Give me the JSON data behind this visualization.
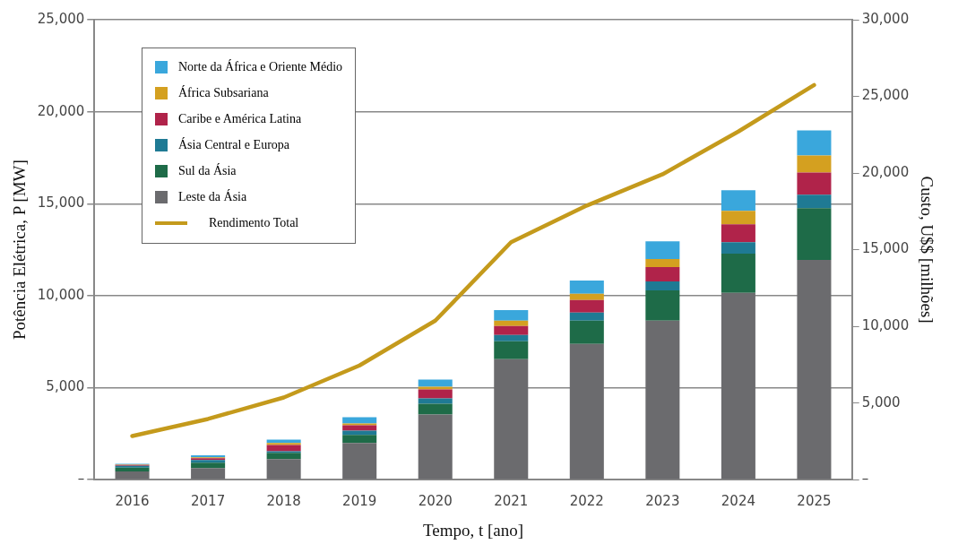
{
  "chart_data": {
    "type": "bar",
    "stacked": true,
    "xlabel": "Tempo, t [ano]",
    "ylabel": "Potência Elétrica, P [MW]",
    "y2label": "Custo, U$$ [milhões]",
    "categories": [
      "2016",
      "2017",
      "2018",
      "2019",
      "2020",
      "2021",
      "2022",
      "2023",
      "2024",
      "2025"
    ],
    "series": [
      {
        "name": "Leste da Ásia",
        "color": "#6b6b6e",
        "values": [
          450,
          630,
          1120,
          1990,
          3540,
          6550,
          7380,
          8640,
          10150,
          11940
        ]
      },
      {
        "name": "Sul da Ásia",
        "color": "#1e6b48",
        "values": [
          200,
          290,
          340,
          440,
          590,
          970,
          1260,
          1650,
          2130,
          2820
        ]
      },
      {
        "name": "Ásia Central e Europa",
        "color": "#1f7a94",
        "values": [
          100,
          150,
          90,
          240,
          290,
          340,
          440,
          490,
          630,
          730
        ]
      },
      {
        "name": "Caribe e América Latina",
        "color": "#b0234a",
        "values": [
          50,
          100,
          340,
          290,
          480,
          490,
          680,
          770,
          970,
          1210
        ]
      },
      {
        "name": "África Subsariana",
        "color": "#d4a020",
        "values": [
          20,
          40,
          100,
          100,
          150,
          290,
          340,
          440,
          730,
          920
        ]
      },
      {
        "name": "Norte da África e Oriente Médio",
        "color": "#3aa7dc",
        "values": [
          40,
          120,
          190,
          340,
          390,
          580,
          730,
          970,
          1120,
          1360
        ]
      },
      {
        "name": "Rendimento Total",
        "type": "line",
        "axis": "y2",
        "color": "#c49a1c",
        "values": [
          2850,
          3960,
          5360,
          7450,
          10370,
          15490,
          17880,
          19920,
          22710,
          25740
        ]
      }
    ],
    "ylim": [
      0,
      25000
    ],
    "yticks": [
      {
        "value": 0,
        "label": "–"
      },
      {
        "value": 5000,
        "label": "5,000"
      },
      {
        "value": 10000,
        "label": "10,000"
      },
      {
        "value": 15000,
        "label": "15,000"
      },
      {
        "value": 20000,
        "label": "20,000"
      },
      {
        "value": 25000,
        "label": "25,000"
      }
    ],
    "y2lim": [
      0,
      30000
    ],
    "y2ticks": [
      {
        "value": 0,
        "label": "–"
      },
      {
        "value": 5000,
        "label": "5,000"
      },
      {
        "value": 10000,
        "label": "10,000"
      },
      {
        "value": 15000,
        "label": "15,000"
      },
      {
        "value": 20000,
        "label": "20,000"
      },
      {
        "value": 25000,
        "label": "25,000"
      },
      {
        "value": 30000,
        "label": "30,000"
      }
    ],
    "grid": "y",
    "legend": "top left",
    "marker": "none",
    "line_style": "solid"
  }
}
